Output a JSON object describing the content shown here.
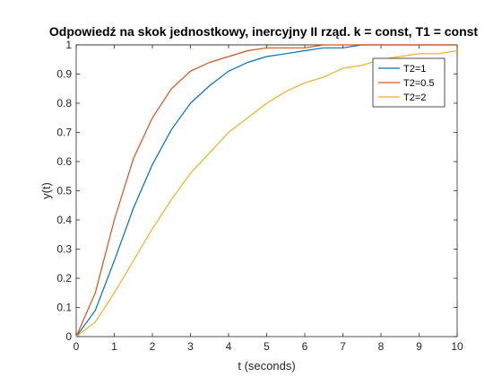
{
  "chart_data": {
    "type": "line",
    "title": "Odpowiedź na skok jednostkowy, inercyjny II rząd. k = const, T1 = const",
    "xlabel": "t (seconds)",
    "ylabel": "y(t)",
    "xlim": [
      0,
      10
    ],
    "ylim": [
      0,
      1
    ],
    "xticks": [
      "0",
      "1",
      "2",
      "3",
      "4",
      "5",
      "6",
      "7",
      "8",
      "9",
      "10"
    ],
    "yticks": [
      "0",
      "0.1",
      "0.2",
      "0.3",
      "0.4",
      "0.5",
      "0.6",
      "0.7",
      "0.8",
      "0.9",
      "1"
    ],
    "grid": false,
    "legend_position": "top-right",
    "x": [
      0,
      0.5,
      1,
      1.5,
      2,
      2.5,
      3,
      3.5,
      4,
      4.5,
      5,
      5.5,
      6,
      6.5,
      7,
      7.5,
      8,
      8.5,
      9,
      9.5,
      10
    ],
    "series": [
      {
        "name": "T2=1",
        "color": "#0072BD",
        "values": [
          0,
          0.09,
          0.26,
          0.44,
          0.59,
          0.71,
          0.8,
          0.86,
          0.91,
          0.94,
          0.96,
          0.97,
          0.98,
          0.99,
          0.99,
          1.0,
          1.0,
          1.0,
          1.0,
          1.0,
          1.0
        ]
      },
      {
        "name": "T2=0.5",
        "color": "#D95319",
        "values": [
          0,
          0.15,
          0.4,
          0.61,
          0.75,
          0.85,
          0.91,
          0.94,
          0.96,
          0.98,
          0.99,
          0.99,
          0.99,
          1.0,
          1.0,
          1.0,
          1.0,
          1.0,
          1.0,
          1.0,
          1.0
        ]
      },
      {
        "name": "T2=2",
        "color": "#EDB120",
        "values": [
          0,
          0.05,
          0.15,
          0.26,
          0.37,
          0.47,
          0.56,
          0.63,
          0.7,
          0.75,
          0.8,
          0.84,
          0.87,
          0.89,
          0.92,
          0.93,
          0.95,
          0.96,
          0.97,
          0.97,
          0.98
        ]
      }
    ]
  }
}
